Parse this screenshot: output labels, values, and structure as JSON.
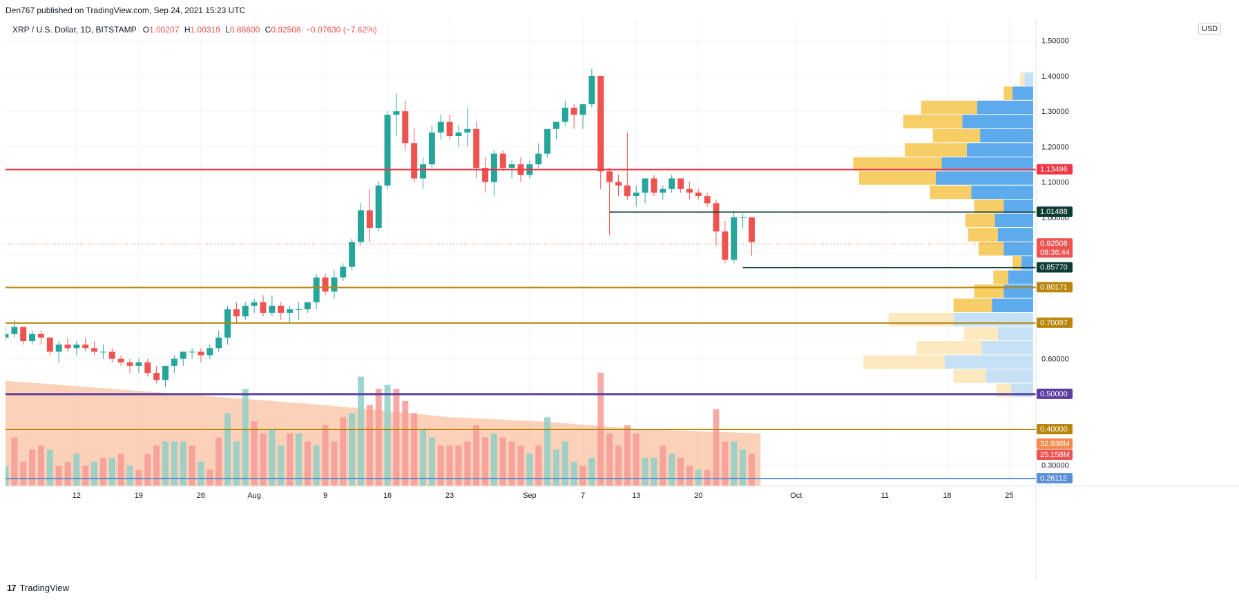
{
  "publisher_line": "Den767 published on TradingView.com, Sep 24, 2021 15:23 UTC",
  "legend": {
    "symbol": "XRP / U.S. Dollar, 1D, BITSTAMP",
    "o_label": "O",
    "o": "1.00207",
    "h_label": "H",
    "h": "1.00319",
    "l_label": "L",
    "l": "0.88600",
    "c_label": "C",
    "c": "0.92508",
    "change": "−0.07630 (−7.62%)"
  },
  "currency_button": "USD",
  "footer": {
    "logo_mark": "17",
    "logo_text": "TradingView"
  },
  "colors": {
    "up": "#26a69a",
    "down": "#ef5350",
    "vol_up": "#8fcfc7",
    "vol_down": "#f49b97",
    "vol_ma": "#f9b48a",
    "vp_up": "#5daaec",
    "vp_down": "#f7cd66",
    "vp_up_light": "#c6e1f6",
    "vp_down_light": "#fce9c0",
    "line_red": "#f23645",
    "line_dark": "#0c3b33",
    "line_gold": "#b8860b",
    "line_purple": "#5b3fa0",
    "line_blue": "#5b8fd6"
  },
  "chart_data": {
    "type": "candlestick",
    "symbol": "XRP / U.S. Dollar, 1D, BITSTAMP",
    "y_ticks": [
      "1.50000",
      "1.40000",
      "1.30000",
      "1.20000",
      "1.10000",
      "1.00000",
      "0.60000",
      "0.30000"
    ],
    "x_ticks": [
      {
        "label": "12",
        "day": 12
      },
      {
        "label": "19",
        "day": 19
      },
      {
        "label": "26",
        "day": 26
      },
      {
        "label": "Aug",
        "day": 32
      },
      {
        "label": "9",
        "day": 40
      },
      {
        "label": "16",
        "day": 47
      },
      {
        "label": "23",
        "day": 54
      },
      {
        "label": "Sep",
        "day": 63
      },
      {
        "label": "7",
        "day": 69
      },
      {
        "label": "13",
        "day": 75
      },
      {
        "label": "20",
        "day": 82
      },
      {
        "label": "Oct",
        "day": 93
      },
      {
        "label": "11",
        "day": 103
      },
      {
        "label": "18",
        "day": 110
      },
      {
        "label": "25",
        "day": 117
      }
    ],
    "y_range": [
      0.24,
      1.56
    ],
    "x_start_day": 4,
    "x_end_day": 120,
    "start_date": "2021-07-04",
    "ohlc": [
      [
        0.66,
        0.69,
        0.65,
        0.67
      ],
      [
        0.67,
        0.71,
        0.66,
        0.69
      ],
      [
        0.69,
        0.69,
        0.64,
        0.65
      ],
      [
        0.65,
        0.68,
        0.64,
        0.67
      ],
      [
        0.67,
        0.68,
        0.64,
        0.66
      ],
      [
        0.66,
        0.66,
        0.61,
        0.62
      ],
      [
        0.62,
        0.65,
        0.59,
        0.64
      ],
      [
        0.64,
        0.66,
        0.62,
        0.63
      ],
      [
        0.63,
        0.65,
        0.61,
        0.64
      ],
      [
        0.64,
        0.66,
        0.62,
        0.63
      ],
      [
        0.63,
        0.65,
        0.61,
        0.62
      ],
      [
        0.62,
        0.64,
        0.6,
        0.62
      ],
      [
        0.62,
        0.63,
        0.59,
        0.6
      ],
      [
        0.6,
        0.61,
        0.58,
        0.59
      ],
      [
        0.59,
        0.6,
        0.56,
        0.58
      ],
      [
        0.58,
        0.6,
        0.56,
        0.59
      ],
      [
        0.59,
        0.6,
        0.55,
        0.56
      ],
      [
        0.56,
        0.58,
        0.53,
        0.54
      ],
      [
        0.54,
        0.58,
        0.52,
        0.58
      ],
      [
        0.58,
        0.61,
        0.56,
        0.6
      ],
      [
        0.6,
        0.62,
        0.58,
        0.62
      ],
      [
        0.62,
        0.63,
        0.6,
        0.62
      ],
      [
        0.62,
        0.63,
        0.59,
        0.61
      ],
      [
        0.61,
        0.64,
        0.6,
        0.63
      ],
      [
        0.63,
        0.68,
        0.62,
        0.66
      ],
      [
        0.66,
        0.75,
        0.64,
        0.74
      ],
      [
        0.74,
        0.76,
        0.7,
        0.72
      ],
      [
        0.72,
        0.76,
        0.71,
        0.75
      ],
      [
        0.75,
        0.77,
        0.73,
        0.76
      ],
      [
        0.76,
        0.78,
        0.72,
        0.73
      ],
      [
        0.73,
        0.78,
        0.72,
        0.75
      ],
      [
        0.75,
        0.76,
        0.71,
        0.73
      ],
      [
        0.73,
        0.75,
        0.7,
        0.74
      ],
      [
        0.74,
        0.76,
        0.71,
        0.74
      ],
      [
        0.74,
        0.76,
        0.73,
        0.76
      ],
      [
        0.76,
        0.84,
        0.74,
        0.83
      ],
      [
        0.83,
        0.84,
        0.78,
        0.79
      ],
      [
        0.79,
        0.85,
        0.77,
        0.83
      ],
      [
        0.83,
        0.87,
        0.82,
        0.86
      ],
      [
        0.86,
        0.94,
        0.85,
        0.93
      ],
      [
        0.93,
        1.04,
        0.92,
        1.02
      ],
      [
        1.02,
        1.08,
        0.93,
        0.97
      ],
      [
        0.97,
        1.1,
        0.96,
        1.09
      ],
      [
        1.09,
        1.3,
        1.08,
        1.29
      ],
      [
        1.29,
        1.35,
        1.23,
        1.3
      ],
      [
        1.3,
        1.33,
        1.19,
        1.21
      ],
      [
        1.21,
        1.25,
        1.1,
        1.11
      ],
      [
        1.11,
        1.17,
        1.08,
        1.15
      ],
      [
        1.15,
        1.26,
        1.14,
        1.24
      ],
      [
        1.24,
        1.29,
        1.22,
        1.27
      ],
      [
        1.27,
        1.29,
        1.22,
        1.23
      ],
      [
        1.23,
        1.26,
        1.2,
        1.24
      ],
      [
        1.24,
        1.31,
        1.2,
        1.25
      ],
      [
        1.25,
        1.27,
        1.11,
        1.14
      ],
      [
        1.14,
        1.17,
        1.07,
        1.1
      ],
      [
        1.1,
        1.19,
        1.06,
        1.18
      ],
      [
        1.18,
        1.19,
        1.13,
        1.14
      ],
      [
        1.14,
        1.16,
        1.11,
        1.15
      ],
      [
        1.15,
        1.17,
        1.1,
        1.12
      ],
      [
        1.12,
        1.16,
        1.11,
        1.15
      ],
      [
        1.15,
        1.21,
        1.14,
        1.18
      ],
      [
        1.18,
        1.24,
        1.17,
        1.25
      ],
      [
        1.25,
        1.27,
        1.22,
        1.27
      ],
      [
        1.27,
        1.33,
        1.26,
        1.31
      ],
      [
        1.31,
        1.32,
        1.25,
        1.29
      ],
      [
        1.29,
        1.31,
        1.25,
        1.32
      ],
      [
        1.32,
        1.42,
        1.31,
        1.4
      ],
      [
        1.4,
        1.4,
        1.08,
        1.13
      ],
      [
        1.13,
        1.14,
        0.95,
        1.1
      ],
      [
        1.1,
        1.12,
        1.06,
        1.09
      ],
      [
        1.09,
        1.24,
        1.05,
        1.06
      ],
      [
        1.06,
        1.09,
        1.03,
        1.07
      ],
      [
        1.07,
        1.11,
        1.04,
        1.11
      ],
      [
        1.11,
        1.12,
        1.06,
        1.07
      ],
      [
        1.07,
        1.09,
        1.05,
        1.08
      ],
      [
        1.08,
        1.12,
        1.07,
        1.11
      ],
      [
        1.11,
        1.11,
        1.07,
        1.08
      ],
      [
        1.08,
        1.1,
        1.05,
        1.07
      ],
      [
        1.07,
        1.08,
        1.05,
        1.06
      ],
      [
        1.06,
        1.07,
        1.03,
        1.04
      ],
      [
        1.04,
        1.05,
        0.92,
        0.96
      ],
      [
        0.96,
        0.99,
        0.87,
        0.88
      ],
      [
        0.88,
        1.02,
        0.87,
        1.0
      ],
      [
        1.0,
        1.01,
        0.97,
        1.0
      ],
      [
        1.0,
        1.0,
        0.89,
        0.93
      ]
    ],
    "volume": [
      {
        "v": 0.05,
        "up": true
      },
      {
        "v": 0.12,
        "up": false
      },
      {
        "v": 0.06,
        "up": false
      },
      {
        "v": 0.09,
        "up": false
      },
      {
        "v": 0.1,
        "up": false
      },
      {
        "v": 0.09,
        "up": true
      },
      {
        "v": 0.05,
        "up": false
      },
      {
        "v": 0.06,
        "up": false
      },
      {
        "v": 0.08,
        "up": true
      },
      {
        "v": 0.05,
        "up": false
      },
      {
        "v": 0.06,
        "up": true
      },
      {
        "v": 0.07,
        "up": false
      },
      {
        "v": 0.07,
        "up": true
      },
      {
        "v": 0.08,
        "up": false
      },
      {
        "v": 0.05,
        "up": true
      },
      {
        "v": 0.04,
        "up": false
      },
      {
        "v": 0.08,
        "up": false
      },
      {
        "v": 0.1,
        "up": false
      },
      {
        "v": 0.11,
        "up": true
      },
      {
        "v": 0.11,
        "up": true
      },
      {
        "v": 0.11,
        "up": true
      },
      {
        "v": 0.1,
        "up": false
      },
      {
        "v": 0.06,
        "up": true
      },
      {
        "v": 0.04,
        "up": false
      },
      {
        "v": 0.12,
        "up": false
      },
      {
        "v": 0.18,
        "up": true
      },
      {
        "v": 0.11,
        "up": true
      },
      {
        "v": 0.24,
        "up": true
      },
      {
        "v": 0.16,
        "up": false
      },
      {
        "v": 0.13,
        "up": false
      },
      {
        "v": 0.14,
        "up": true
      },
      {
        "v": 0.1,
        "up": true
      },
      {
        "v": 0.13,
        "up": false
      },
      {
        "v": 0.13,
        "up": true
      },
      {
        "v": 0.11,
        "up": false
      },
      {
        "v": 0.1,
        "up": true
      },
      {
        "v": 0.15,
        "up": false
      },
      {
        "v": 0.11,
        "up": false
      },
      {
        "v": 0.17,
        "up": false
      },
      {
        "v": 0.18,
        "up": true
      },
      {
        "v": 0.27,
        "up": true
      },
      {
        "v": 0.2,
        "up": false
      },
      {
        "v": 0.24,
        "up": false
      },
      {
        "v": 0.25,
        "up": true
      },
      {
        "v": 0.24,
        "up": false
      },
      {
        "v": 0.21,
        "up": false
      },
      {
        "v": 0.18,
        "up": false
      },
      {
        "v": 0.14,
        "up": true
      },
      {
        "v": 0.12,
        "up": true
      },
      {
        "v": 0.1,
        "up": false
      },
      {
        "v": 0.1,
        "up": false
      },
      {
        "v": 0.1,
        "up": false
      },
      {
        "v": 0.11,
        "up": false
      },
      {
        "v": 0.15,
        "up": false
      },
      {
        "v": 0.12,
        "up": false
      },
      {
        "v": 0.13,
        "up": true
      },
      {
        "v": 0.12,
        "up": false
      },
      {
        "v": 0.11,
        "up": false
      },
      {
        "v": 0.1,
        "up": false
      },
      {
        "v": 0.08,
        "up": true
      },
      {
        "v": 0.1,
        "up": false
      },
      {
        "v": 0.17,
        "up": true
      },
      {
        "v": 0.09,
        "up": true
      },
      {
        "v": 0.11,
        "up": true
      },
      {
        "v": 0.06,
        "up": true
      },
      {
        "v": 0.05,
        "up": false
      },
      {
        "v": 0.07,
        "up": true
      },
      {
        "v": 0.28,
        "up": false
      },
      {
        "v": 0.13,
        "up": false
      },
      {
        "v": 0.1,
        "up": false
      },
      {
        "v": 0.15,
        "up": false
      },
      {
        "v": 0.13,
        "up": false
      },
      {
        "v": 0.07,
        "up": true
      },
      {
        "v": 0.07,
        "up": true
      },
      {
        "v": 0.1,
        "up": false
      },
      {
        "v": 0.08,
        "up": true
      },
      {
        "v": 0.07,
        "up": false
      },
      {
        "v": 0.05,
        "up": false
      },
      {
        "v": 0.04,
        "up": true
      },
      {
        "v": 0.04,
        "up": false
      },
      {
        "v": 0.19,
        "up": false
      },
      {
        "v": 0.11,
        "up": false
      },
      {
        "v": 0.11,
        "up": true
      },
      {
        "v": 0.09,
        "up": true
      },
      {
        "v": 0.08,
        "up": false
      }
    ],
    "volume_scale_max": 0.3,
    "volume_ma_points": [
      [
        0,
        0.26
      ],
      [
        30,
        0.21
      ],
      [
        36,
        0.2
      ],
      [
        50,
        0.17
      ],
      [
        60,
        0.16
      ],
      [
        72,
        0.14
      ],
      [
        85,
        0.13
      ]
    ],
    "horizontal_lines": [
      {
        "price": 1.13496,
        "label": "1.13496",
        "color": "#f23645",
        "width": 2,
        "from_day": 4
      },
      {
        "price": 1.01488,
        "label": "1.01488",
        "color": "#0c3b33",
        "width": 1.5,
        "from_day": 72
      },
      {
        "price": 0.8577,
        "label": "0.85770",
        "color": "#0c3b33",
        "width": 1.5,
        "from_day": 87
      },
      {
        "price": 0.80171,
        "label": "0.80171",
        "color": "#b8860b",
        "width": 2,
        "from_day": 4
      },
      {
        "price": 0.70097,
        "label": "0.70097",
        "color": "#b8860b",
        "width": 2,
        "from_day": 4
      },
      {
        "price": 0.5,
        "label": "0.50000",
        "color": "#5b3fa0",
        "width": 3,
        "from_day": 4
      },
      {
        "price": 0.4,
        "label": "0.40000",
        "color": "#b8860b",
        "width": 2,
        "from_day": 4
      },
      {
        "price": 0.26112,
        "label": "0.26112",
        "color": "#5b8fd6",
        "width": 2,
        "from_day": 4
      }
    ],
    "last_price": {
      "price": 0.92508,
      "label": "0.92508",
      "countdown": "08:36:44",
      "color": "#ef5350"
    },
    "volume_labels": [
      {
        "label": "32.938M",
        "color": "#f7894a"
      },
      {
        "label": "25.158M",
        "color": "#ef5350"
      }
    ],
    "volume_profile": [
      {
        "lo": 1.37,
        "hi": 1.41,
        "up": 0.06,
        "down": 0.03,
        "light": true
      },
      {
        "lo": 1.33,
        "hi": 1.37,
        "up": 0.14,
        "down": 0.06,
        "light": false
      },
      {
        "lo": 1.29,
        "hi": 1.33,
        "up": 0.38,
        "down": 0.38,
        "light": false
      },
      {
        "lo": 1.25,
        "hi": 1.29,
        "up": 0.48,
        "down": 0.4,
        "light": false
      },
      {
        "lo": 1.21,
        "hi": 1.25,
        "up": 0.36,
        "down": 0.32,
        "light": false
      },
      {
        "lo": 1.17,
        "hi": 1.21,
        "up": 0.45,
        "down": 0.42,
        "light": false
      },
      {
        "lo": 1.13,
        "hi": 1.17,
        "up": 0.62,
        "down": 0.6,
        "light": false
      },
      {
        "lo": 1.09,
        "hi": 1.13,
        "up": 0.66,
        "down": 0.52,
        "light": false
      },
      {
        "lo": 1.05,
        "hi": 1.09,
        "up": 0.42,
        "down": 0.28,
        "light": false
      },
      {
        "lo": 1.01,
        "hi": 1.05,
        "up": 0.2,
        "down": 0.2,
        "light": false
      },
      {
        "lo": 0.97,
        "hi": 1.01,
        "up": 0.26,
        "down": 0.2,
        "light": false
      },
      {
        "lo": 0.93,
        "hi": 0.97,
        "up": 0.24,
        "down": 0.2,
        "light": false
      },
      {
        "lo": 0.89,
        "hi": 0.93,
        "up": 0.2,
        "down": 0.17,
        "light": false
      },
      {
        "lo": 0.85,
        "hi": 0.89,
        "up": 0.08,
        "down": 0.06,
        "light": false
      },
      {
        "lo": 0.81,
        "hi": 0.85,
        "up": 0.17,
        "down": 0.1,
        "light": false
      },
      {
        "lo": 0.77,
        "hi": 0.81,
        "up": 0.2,
        "down": 0.2,
        "light": false
      },
      {
        "lo": 0.73,
        "hi": 0.77,
        "up": 0.28,
        "down": 0.26,
        "light": false
      },
      {
        "lo": 0.69,
        "hi": 0.73,
        "up": 0.54,
        "down": 0.44,
        "light": true
      },
      {
        "lo": 0.65,
        "hi": 0.69,
        "up": 0.24,
        "down": 0.23,
        "light": true
      },
      {
        "lo": 0.61,
        "hi": 0.65,
        "up": 0.35,
        "down": 0.44,
        "light": true
      },
      {
        "lo": 0.57,
        "hi": 0.61,
        "up": 0.6,
        "down": 0.55,
        "light": true
      },
      {
        "lo": 0.53,
        "hi": 0.57,
        "up": 0.32,
        "down": 0.22,
        "light": true
      },
      {
        "lo": 0.49,
        "hi": 0.53,
        "up": 0.15,
        "down": 0.1,
        "light": true
      }
    ]
  }
}
